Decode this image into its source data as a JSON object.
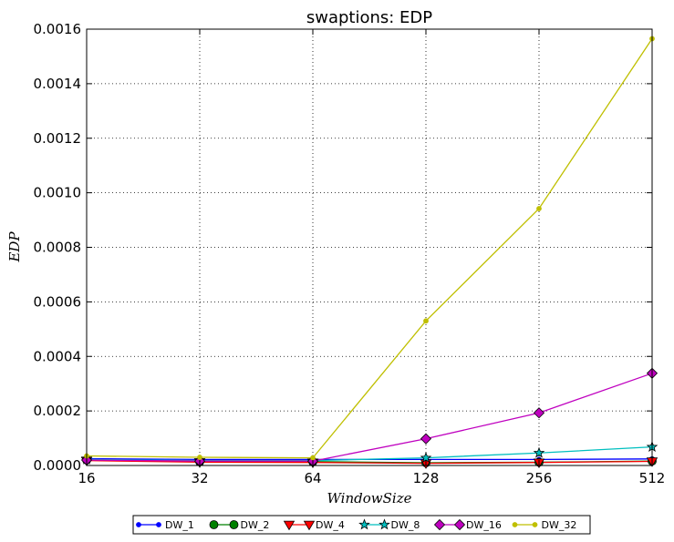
{
  "chart_data": {
    "type": "line",
    "title": "swaptions: EDP",
    "xlabel": "WindowSize",
    "ylabel": "EDP",
    "x": [
      16,
      32,
      64,
      128,
      256,
      512
    ],
    "x_tick_labels": [
      "16",
      "32",
      "64",
      "128",
      "256",
      "512"
    ],
    "x_scale": "log2",
    "y_tick_labels": [
      "0.0000",
      "0.0002",
      "0.0004",
      "0.0006",
      "0.0008",
      "0.0010",
      "0.0012",
      "0.0014",
      "0.0016"
    ],
    "ylim": [
      0,
      0.0016
    ],
    "grid": true,
    "legend_position": "below-center",
    "series": [
      {
        "name": "DW_1",
        "color": "#0000ff",
        "marker": "point",
        "values": [
          2.5e-05,
          2.2e-05,
          2.2e-05,
          2.2e-05,
          2.2e-05,
          2.4e-05
        ]
      },
      {
        "name": "DW_2",
        "color": "#008000",
        "marker": "circle",
        "values": [
          2e-05,
          1.4e-05,
          1.4e-05,
          1e-05,
          1.2e-05,
          1.6e-05
        ]
      },
      {
        "name": "DW_4",
        "color": "#ff0000",
        "marker": "triangle",
        "values": [
          1.8e-05,
          1.2e-05,
          1.1e-05,
          8e-06,
          1.1e-05,
          1.5e-05
        ]
      },
      {
        "name": "DW_8",
        "color": "#00bfbf",
        "marker": "star",
        "values": [
          2.2e-05,
          1.8e-05,
          1.8e-05,
          2.8e-05,
          4.6e-05,
          6.8e-05
        ]
      },
      {
        "name": "DW_16",
        "color": "#bf00bf",
        "marker": "diamond",
        "values": [
          2e-05,
          1.6e-05,
          1.6e-05,
          9.8e-05,
          0.000193,
          0.000338
        ]
      },
      {
        "name": "DW_32",
        "color": "#bfbf00",
        "marker": "point",
        "values": [
          3.5e-05,
          3e-05,
          2.8e-05,
          0.00053,
          0.000942,
          0.001565
        ]
      }
    ]
  }
}
